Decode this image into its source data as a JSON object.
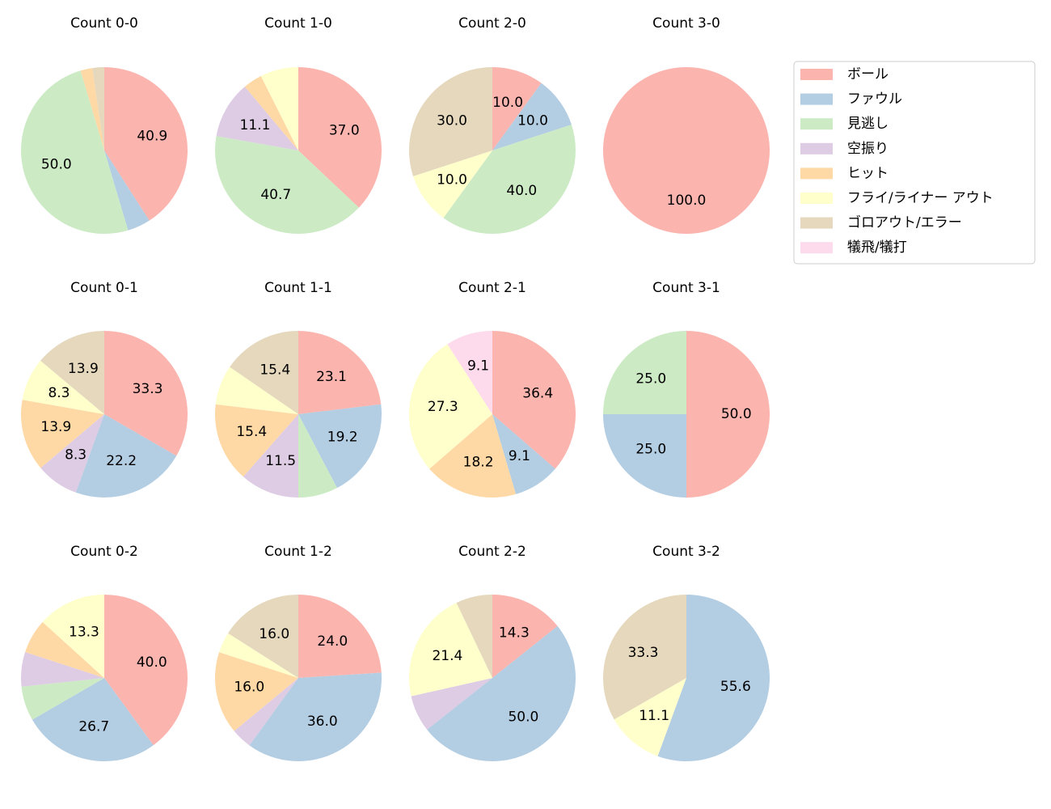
{
  "legend": {
    "labels": [
      "ボール",
      "ファウル",
      "見逃し",
      "空振り",
      "ヒット",
      "フライ/ライナー アウト",
      "ゴロアウト/エラー",
      "犠飛/犠打"
    ],
    "colors": [
      "#fbb4ae",
      "#b3cde3",
      "#ccebc5",
      "#decbe4",
      "#fed9a6",
      "#ffffcc",
      "#e5d8bd",
      "#fddaec"
    ],
    "position": "upper right"
  },
  "chart_data": [
    {
      "type": "pie",
      "title": "Count 0-0",
      "values": [
        40.9,
        4.5,
        50.0,
        0,
        2.3,
        0,
        2.3,
        0
      ],
      "value_labels": [
        "40.9",
        null,
        "50.0",
        null,
        null,
        null,
        null,
        null
      ]
    },
    {
      "type": "pie",
      "title": "Count 1-0",
      "values": [
        37.0,
        0,
        40.7,
        11.1,
        3.7,
        7.4,
        0,
        0
      ],
      "value_labels": [
        "37.0",
        null,
        "40.7",
        "11.1",
        null,
        null,
        null,
        null
      ]
    },
    {
      "type": "pie",
      "title": "Count 2-0",
      "values": [
        10.0,
        10.0,
        40.0,
        0,
        0,
        10.0,
        30.0,
        0
      ],
      "value_labels": [
        "10.0",
        "10.0",
        "40.0",
        null,
        null,
        "10.0",
        "30.0",
        null
      ]
    },
    {
      "type": "pie",
      "title": "Count 3-0",
      "values": [
        100,
        0,
        0,
        0,
        0,
        0,
        0,
        0
      ],
      "value_labels": [
        "100.0",
        null,
        null,
        null,
        null,
        null,
        null,
        null
      ]
    },
    {
      "type": "pie",
      "title": "Count 0-1",
      "values": [
        33.3,
        22.2,
        0,
        8.3,
        13.9,
        8.3,
        13.9,
        0
      ],
      "value_labels": [
        "33.3",
        "22.2",
        null,
        "8.3",
        "13.9",
        "8.3",
        "13.9",
        null
      ]
    },
    {
      "type": "pie",
      "title": "Count 1-1",
      "values": [
        23.1,
        19.2,
        7.7,
        11.5,
        15.4,
        7.7,
        15.4,
        0
      ],
      "value_labels": [
        "23.1",
        "19.2",
        null,
        "11.5",
        "15.4",
        null,
        "15.4",
        null
      ]
    },
    {
      "type": "pie",
      "title": "Count 2-1",
      "values": [
        36.4,
        9.1,
        0,
        0,
        18.2,
        27.3,
        0,
        9.1
      ],
      "value_labels": [
        "36.4",
        "9.1",
        null,
        null,
        "18.2",
        "27.3",
        null,
        "9.1"
      ]
    },
    {
      "type": "pie",
      "title": "Count 3-1",
      "values": [
        50.0,
        25.0,
        25.0,
        0,
        0,
        0,
        0,
        0
      ],
      "value_labels": [
        "50.0",
        "25.0",
        "25.0",
        null,
        null,
        null,
        null,
        null
      ]
    },
    {
      "type": "pie",
      "title": "Count 0-2",
      "values": [
        40.0,
        26.7,
        6.7,
        6.7,
        6.7,
        13.3,
        0,
        0
      ],
      "value_labels": [
        "40.0",
        "26.7",
        null,
        null,
        null,
        "13.3",
        null,
        null
      ]
    },
    {
      "type": "pie",
      "title": "Count 1-2",
      "values": [
        24.0,
        36.0,
        0,
        4.0,
        16.0,
        4.0,
        16.0,
        0
      ],
      "value_labels": [
        "24.0",
        "36.0",
        null,
        null,
        "16.0",
        null,
        "16.0",
        null
      ]
    },
    {
      "type": "pie",
      "title": "Count 2-2",
      "values": [
        14.3,
        50.0,
        0,
        7.1,
        0,
        21.4,
        7.1,
        0
      ],
      "value_labels": [
        "14.3",
        "50.0",
        null,
        null,
        null,
        "21.4",
        null,
        null
      ]
    },
    {
      "type": "pie",
      "title": "Count 3-2",
      "values": [
        0,
        55.6,
        0,
        0,
        0,
        11.1,
        33.3,
        0
      ],
      "value_labels": [
        null,
        "55.6",
        null,
        null,
        null,
        "11.1",
        "33.3",
        null
      ]
    }
  ]
}
